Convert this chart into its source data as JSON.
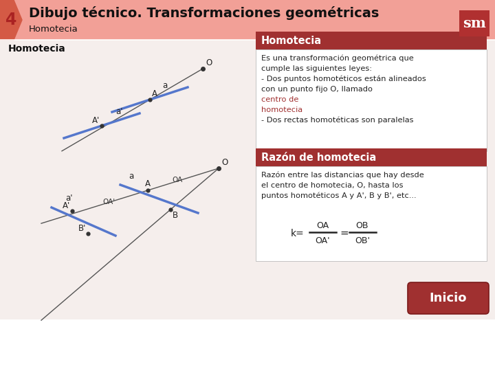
{
  "title_number": "4",
  "title_main": "Dibujo técnico. Transformaciones geométricas",
  "title_sub": "Homotecia",
  "header_bg": "#f2a097",
  "header_text_color": "#000000",
  "page_bg": "#f5eeec",
  "left_label": "Homotecia",
  "box1_title": "Homotecia",
  "box1_title_bg": "#a03030",
  "box1_title_fg": "#ffffff",
  "box1_bg": "#ffffff",
  "box2_title": "Razón de homotecia",
  "box2_title_bg": "#a03030",
  "box2_title_fg": "#ffffff",
  "box2_bg": "#ffffff",
  "inicio_bg": "#a03030",
  "inicio_text": "Inicio",
  "sm_logo_bg": "#b03030",
  "sm_logo_text": "sm"
}
